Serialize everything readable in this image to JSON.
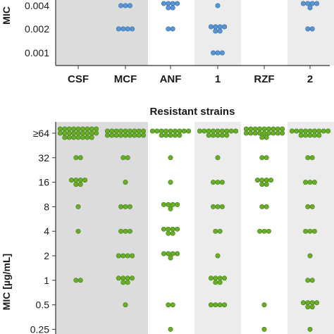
{
  "colors": {
    "susceptible_dot": "#5b95d3",
    "susceptible_stroke": "#2f6aa8",
    "resistant_dot": "#6aad2b",
    "resistant_stroke": "#3f7d12",
    "panel_shade_dark": "#dcdcdc",
    "panel_shade_light": "#ececec",
    "axis": "#333333"
  },
  "chart_data": [
    {
      "type": "scatter",
      "title": "",
      "ylabel": "MIC",
      "xlabel": "",
      "categories": [
        "CSF",
        "MCF",
        "ANF",
        "1",
        "RZF",
        "2"
      ],
      "yticks": [
        "0.004",
        "0.002",
        "0.001"
      ],
      "shaded_categories": [
        "CSF",
        "MCF",
        "1",
        "2"
      ],
      "counts": {
        "0.004": [
          0,
          3,
          6,
          1,
          0,
          5
        ],
        "0.002": [
          0,
          4,
          2,
          6,
          0,
          2
        ],
        "0.001": [
          0,
          0,
          0,
          3,
          0,
          0
        ]
      },
      "note": "Top panel is cropped; higher rows are outside the visible area."
    },
    {
      "type": "scatter",
      "title": "Resistant strains",
      "ylabel": "MIC [µg/mL]",
      "xlabel": "",
      "categories": [
        "CSF",
        "MCF",
        "ANF",
        "1",
        "RZF",
        "2"
      ],
      "yticks": [
        "≥64",
        "32",
        "16",
        "8",
        "4",
        "2",
        "1",
        "0.5",
        "0.25"
      ],
      "shaded_categories": [
        "CSF",
        "MCF",
        "1",
        "2"
      ],
      "counts": {
        "≥64": [
          25,
          18,
          14,
          14,
          20,
          14
        ],
        "32": [
          2,
          2,
          1,
          1,
          2,
          2
        ],
        "16": [
          6,
          1,
          1,
          3,
          6,
          3
        ],
        "8": [
          1,
          3,
          5,
          3,
          2,
          2
        ],
        "4": [
          1,
          3,
          6,
          2,
          3,
          3
        ],
        "2": [
          0,
          4,
          5,
          1,
          0,
          1
        ],
        "1": [
          2,
          6,
          0,
          6,
          0,
          2
        ],
        "0.5": [
          0,
          1,
          2,
          4,
          1,
          6
        ],
        "0.25": [
          0,
          0,
          1,
          0,
          1,
          1
        ]
      }
    }
  ]
}
